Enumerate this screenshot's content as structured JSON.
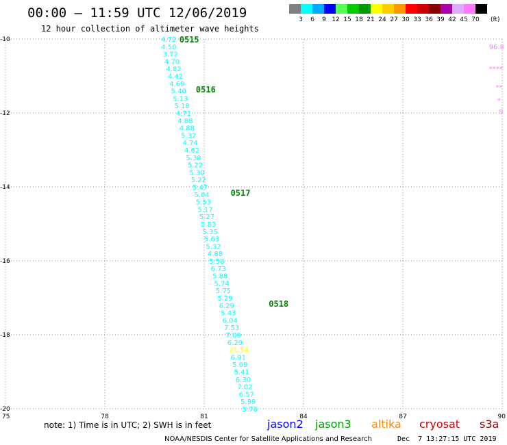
{
  "header": {
    "title": "00:00 – 11:59 UTC 12/06/2019",
    "subtitle": "12 hour collection of altimeter wave heights"
  },
  "colorbar": {
    "unit": "(ft)",
    "ticks": [
      "3",
      "6",
      "9",
      "12",
      "15",
      "18",
      "21",
      "24",
      "27",
      "30",
      "33",
      "36",
      "39",
      "42",
      "45",
      "70"
    ],
    "colors": [
      "#808080",
      "#00ffff",
      "#00aaff",
      "#0000ff",
      "#55ff55",
      "#00cc00",
      "#009900",
      "#ffff00",
      "#ffcc00",
      "#ff9900",
      "#ff0000",
      "#cc0000",
      "#880000",
      "#aa00aa",
      "#ddaaff",
      "#ff77ff",
      "#000000"
    ]
  },
  "footer": {
    "note": "note: 1) Time is in UTC; 2) SWH is in feet",
    "satellites": [
      {
        "name": "jason2",
        "color": "#0000ff"
      },
      {
        "name": "jason3",
        "color": "#009900"
      },
      {
        "name": "altika",
        "color": "#ff8800"
      },
      {
        "name": "cryosat",
        "color": "#cc0000"
      },
      {
        "name": "s3a",
        "color": "#880000"
      }
    ],
    "credit": "NOAA/NESDIS Center for Satellite Applications and Research",
    "timestamp": "Dec  7 13:27:15 UTC 2019"
  },
  "chart_data": {
    "type": "scatter",
    "xlim": [
      75,
      90
    ],
    "ylim": [
      -20,
      -10
    ],
    "xticks": [
      "75",
      "78",
      "81",
      "84",
      "87",
      "90"
    ],
    "yticks": [
      "-10",
      "-12",
      "-14",
      "-16",
      "-18",
      "-20"
    ],
    "grid": true,
    "track_points": [
      {
        "lon": 79.7,
        "lat": -10.0,
        "swh": "4.72",
        "color": "#00ffff"
      },
      {
        "lon": 79.7,
        "lat": -10.2,
        "swh": "4.50",
        "color": "#00ffff"
      },
      {
        "lon": 79.75,
        "lat": -10.4,
        "swh": "3.72",
        "color": "#00ffff"
      },
      {
        "lon": 79.8,
        "lat": -10.6,
        "swh": "4.70",
        "color": "#00ffff"
      },
      {
        "lon": 79.85,
        "lat": -10.8,
        "swh": "4.82",
        "color": "#00ffff"
      },
      {
        "lon": 79.9,
        "lat": -11.0,
        "swh": "4.42",
        "color": "#00ffff"
      },
      {
        "lon": 79.95,
        "lat": -11.2,
        "swh": "4.69",
        "color": "#00ffff"
      },
      {
        "lon": 80.0,
        "lat": -11.4,
        "swh": "5.40",
        "color": "#00ffff"
      },
      {
        "lon": 80.05,
        "lat": -11.6,
        "swh": "5.13",
        "color": "#00ffff"
      },
      {
        "lon": 80.1,
        "lat": -11.8,
        "swh": "5.18",
        "color": "#00ffff"
      },
      {
        "lon": 80.15,
        "lat": -12.0,
        "swh": "4.71",
        "color": "#00ffff"
      },
      {
        "lon": 80.2,
        "lat": -12.2,
        "swh": "4.88",
        "color": "#00ffff"
      },
      {
        "lon": 80.25,
        "lat": -12.4,
        "swh": "4.88",
        "color": "#00ffff"
      },
      {
        "lon": 80.3,
        "lat": -12.6,
        "swh": "5.32",
        "color": "#00ffff"
      },
      {
        "lon": 80.35,
        "lat": -12.8,
        "swh": "4.74",
        "color": "#00ffff"
      },
      {
        "lon": 80.4,
        "lat": -13.0,
        "swh": "4.62",
        "color": "#00ffff"
      },
      {
        "lon": 80.45,
        "lat": -13.2,
        "swh": "5.38",
        "color": "#00ffff"
      },
      {
        "lon": 80.5,
        "lat": -13.4,
        "swh": "5.22",
        "color": "#00ffff"
      },
      {
        "lon": 80.55,
        "lat": -13.6,
        "swh": "5.30",
        "color": "#00ffff"
      },
      {
        "lon": 80.6,
        "lat": -13.8,
        "swh": "5.22",
        "color": "#00ffff"
      },
      {
        "lon": 80.65,
        "lat": -14.0,
        "swh": "5.47",
        "color": "#00ffff"
      },
      {
        "lon": 80.7,
        "lat": -14.2,
        "swh": "5.04",
        "color": "#00ffff"
      },
      {
        "lon": 80.75,
        "lat": -14.4,
        "swh": "5.53",
        "color": "#00ffff"
      },
      {
        "lon": 80.8,
        "lat": -14.6,
        "swh": "5.17",
        "color": "#00ffff"
      },
      {
        "lon": 80.85,
        "lat": -14.8,
        "swh": "5.27",
        "color": "#00ffff"
      },
      {
        "lon": 80.9,
        "lat": -15.0,
        "swh": "5.83",
        "color": "#00ffff"
      },
      {
        "lon": 80.95,
        "lat": -15.2,
        "swh": "5.35",
        "color": "#00ffff"
      },
      {
        "lon": 81.0,
        "lat": -15.4,
        "swh": "5.63",
        "color": "#00ffff"
      },
      {
        "lon": 81.05,
        "lat": -15.6,
        "swh": "5.32",
        "color": "#00ffff"
      },
      {
        "lon": 81.1,
        "lat": -15.8,
        "swh": "4.88",
        "color": "#00ffff"
      },
      {
        "lon": 81.15,
        "lat": -16.0,
        "swh": "5.58",
        "color": "#00ffff"
      },
      {
        "lon": 81.2,
        "lat": -16.2,
        "swh": "6.73",
        "color": "#00ffff"
      },
      {
        "lon": 81.25,
        "lat": -16.4,
        "swh": "5.88",
        "color": "#00ffff"
      },
      {
        "lon": 81.3,
        "lat": -16.6,
        "swh": "5.74",
        "color": "#00ffff"
      },
      {
        "lon": 81.35,
        "lat": -16.8,
        "swh": "5.75",
        "color": "#00ffff"
      },
      {
        "lon": 81.4,
        "lat": -17.0,
        "swh": "5.29",
        "color": "#00ffff"
      },
      {
        "lon": 81.45,
        "lat": -17.2,
        "swh": "6.29",
        "color": "#00ffff"
      },
      {
        "lon": 81.5,
        "lat": -17.4,
        "swh": "5.43",
        "color": "#00ffff"
      },
      {
        "lon": 81.55,
        "lat": -17.6,
        "swh": "6.04",
        "color": "#00ffff"
      },
      {
        "lon": 81.6,
        "lat": -17.8,
        "swh": "7.53",
        "color": "#00ffff"
      },
      {
        "lon": 81.65,
        "lat": -18.0,
        "swh": "7.09",
        "color": "#00ffff"
      },
      {
        "lon": 81.7,
        "lat": -18.2,
        "swh": "6.29",
        "color": "#00ffff"
      },
      {
        "lon": 81.75,
        "lat": -18.4,
        "swh": "21.54",
        "color": "#ffff00"
      },
      {
        "lon": 81.8,
        "lat": -18.6,
        "swh": "6.91",
        "color": "#00ffff"
      },
      {
        "lon": 81.85,
        "lat": -18.8,
        "swh": "5.09",
        "color": "#00ffff"
      },
      {
        "lon": 81.9,
        "lat": -19.0,
        "swh": "5.41",
        "color": "#00ffff"
      },
      {
        "lon": 81.95,
        "lat": -19.2,
        "swh": "6.30",
        "color": "#00ffff"
      },
      {
        "lon": 82.0,
        "lat": -19.4,
        "swh": "7.02",
        "color": "#00ffff"
      },
      {
        "lon": 82.05,
        "lat": -19.6,
        "swh": "6.57",
        "color": "#00ffff"
      },
      {
        "lon": 82.1,
        "lat": -19.8,
        "swh": "5.99",
        "color": "#00ffff"
      },
      {
        "lon": 82.15,
        "lat": -20.0,
        "swh": "5.78",
        "color": "#00ffff"
      }
    ],
    "time_labels": [
      {
        "lon": 80.25,
        "lat": -10.0,
        "text": "0515",
        "color": "#008800"
      },
      {
        "lon": 80.75,
        "lat": -11.35,
        "text": "0516",
        "color": "#008800"
      },
      {
        "lon": 81.8,
        "lat": -14.15,
        "text": "0517",
        "color": "#008800"
      },
      {
        "lon": 82.95,
        "lat": -17.15,
        "text": "0518",
        "color": "#008800"
      }
    ],
    "edge_labels": [
      {
        "lon": 89.6,
        "lat": -10.2,
        "text": "96.8",
        "color": "#ee88ee"
      },
      {
        "lon": 89.6,
        "lat": -10.8,
        "text": "****",
        "color": "#ee88ee"
      },
      {
        "lon": 89.8,
        "lat": -11.3,
        "text": "**",
        "color": "#ee88ee"
      },
      {
        "lon": 89.85,
        "lat": -11.65,
        "text": "*",
        "color": "#ee88ee"
      },
      {
        "lon": 89.9,
        "lat": -11.95,
        "text": "9",
        "color": "#ee88ee"
      }
    ]
  }
}
